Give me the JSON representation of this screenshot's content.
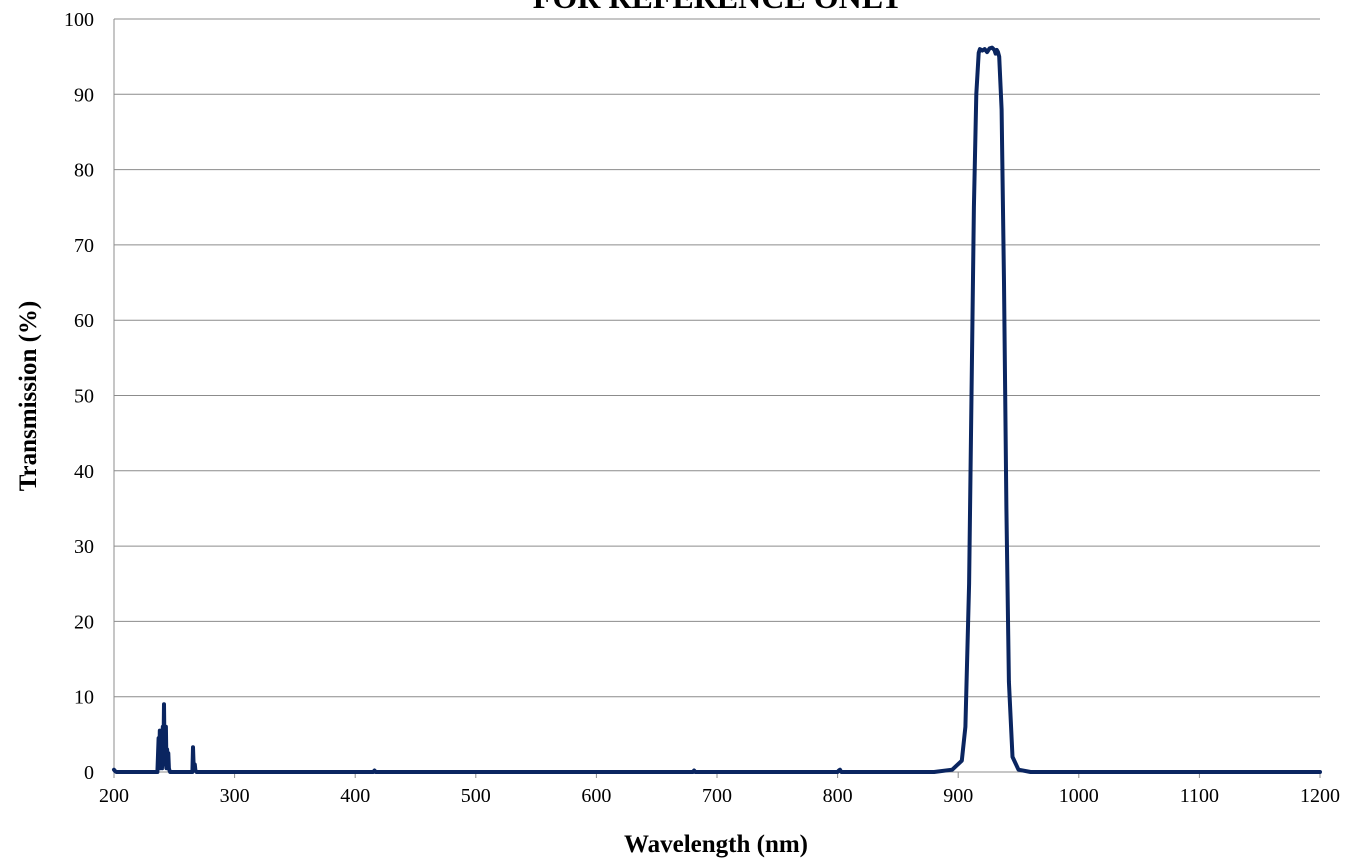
{
  "chart_data": {
    "type": "line",
    "title": "FOR REFERENCE ONLY",
    "xlabel": "Wavelength (nm)",
    "ylabel": "Transmission (%)",
    "xlim": [
      200,
      1200
    ],
    "ylim": [
      0,
      100
    ],
    "xticks": [
      200,
      300,
      400,
      500,
      600,
      700,
      800,
      900,
      1000,
      1100,
      1200
    ],
    "yticks": [
      0,
      10,
      20,
      30,
      40,
      50,
      60,
      70,
      80,
      90,
      100
    ],
    "grid": "horizontal",
    "legend": "none",
    "colors": {
      "series": "#0a2560",
      "grid": "#8c8c8c",
      "axis": "#8c8c8c"
    },
    "series": [
      {
        "x": [
          200,
          201,
          202,
          236,
          237,
          237.5,
          238,
          238.5,
          239,
          239.5,
          240,
          240.5,
          241,
          241.5,
          242,
          242.5,
          243,
          243.5,
          244,
          244.5,
          245,
          245.5,
          246,
          246.5,
          247,
          248,
          265,
          265.5,
          266,
          266.5,
          267,
          267.5,
          268,
          268.5,
          269,
          300,
          400,
          415,
          416,
          417,
          500,
          600,
          680,
          681,
          682,
          700,
          800,
          801,
          802,
          803,
          880,
          895,
          903,
          906,
          909,
          911,
          913,
          915,
          917,
          918,
          920,
          922,
          924,
          926,
          928,
          930,
          931,
          932,
          933,
          934,
          936,
          938,
          940,
          942,
          945,
          950,
          960,
          1000,
          1100,
          1200
        ],
        "y": [
          0.3,
          0.1,
          0,
          0,
          4.5,
          1,
          5.5,
          0.5,
          3,
          5,
          0.5,
          6,
          2,
          9,
          1,
          4,
          6,
          0.5,
          3,
          1.5,
          2.5,
          0.5,
          0.2,
          0,
          0,
          0,
          0,
          3.3,
          1,
          0.3,
          1,
          0.2,
          0.1,
          0,
          0,
          0,
          0,
          0,
          0.2,
          0,
          0,
          0,
          0,
          0.2,
          0,
          0,
          0,
          0.2,
          0.3,
          0,
          0,
          0.3,
          1.5,
          6,
          25,
          50,
          75,
          90,
          95.5,
          96,
          95.8,
          96,
          95.6,
          96.1,
          96.2,
          95.9,
          95.4,
          95.9,
          95.6,
          95,
          88,
          65,
          35,
          12,
          2,
          0.3,
          0,
          0,
          0,
          0
        ]
      }
    ]
  }
}
